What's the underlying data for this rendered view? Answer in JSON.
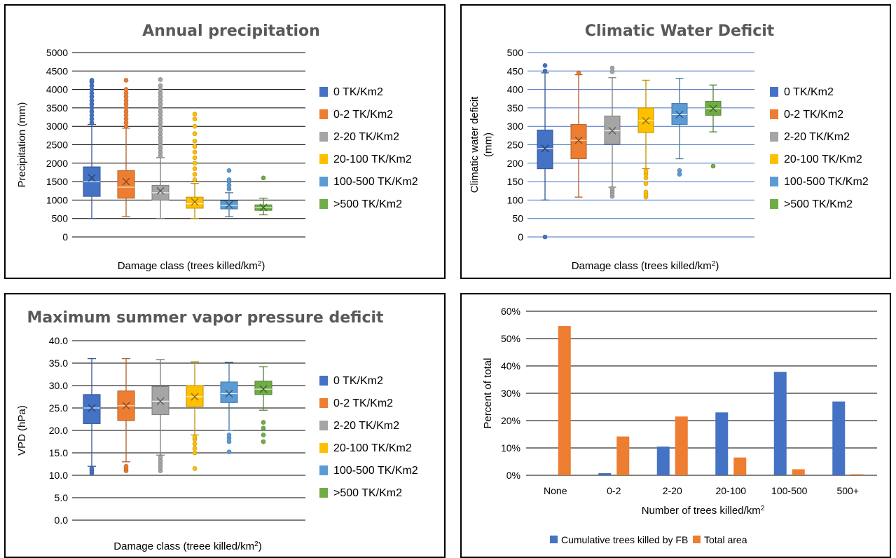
{
  "chart_data": [
    {
      "type": "box",
      "title": "Annual precipitation",
      "xlabel": "Damage class (trees killed/km",
      "xlabel_sup": "2",
      "xlabel_end": ")",
      "ylabel": "Precipitation (mm)",
      "ylim": [
        0,
        5000
      ],
      "yticks": [
        0,
        500,
        1000,
        1500,
        2000,
        2500,
        3000,
        3500,
        4000,
        4500,
        5000
      ],
      "ytick_labels": [
        "0",
        "500",
        "1000",
        "1500",
        "2000",
        "2500",
        "3000",
        "3500",
        "4000",
        "4500",
        "5000"
      ],
      "legend_position": "right",
      "series": [
        {
          "name": "0 TK/Km2",
          "color": "#4472c4",
          "min": 500,
          "q1": 1100,
          "median": 1500,
          "q3": 1900,
          "max": 3050,
          "mean": 1600,
          "outliers": [
            3100,
            3200,
            3300,
            3400,
            3500,
            3600,
            3700,
            3800,
            3900,
            4000,
            4100,
            4200,
            4250
          ]
        },
        {
          "name": "0-2 TK/Km2",
          "color": "#ed7d31",
          "min": 550,
          "q1": 1050,
          "median": 1350,
          "q3": 1800,
          "max": 2950,
          "mean": 1500,
          "outliers": [
            3000,
            3100,
            3200,
            3300,
            3400,
            3500,
            3600,
            3700,
            3800,
            3900,
            4000,
            4250
          ]
        },
        {
          "name": "2-20 TK/Km2",
          "color": "#a5a5a5",
          "min": 500,
          "q1": 1000,
          "median": 1200,
          "q3": 1400,
          "max": 2150,
          "mean": 1250,
          "outliers": [
            2200,
            2300,
            2400,
            2500,
            2600,
            2700,
            2800,
            2900,
            3000,
            3100,
            3200,
            3300,
            3400,
            3500,
            3600,
            3700,
            3800,
            3900,
            4000,
            4100,
            4270
          ]
        },
        {
          "name": "20-100 TK/Km2",
          "color": "#ffc000",
          "min": 500,
          "q1": 780,
          "median": 900,
          "q3": 1080,
          "max": 1450,
          "mean": 950,
          "outliers": [
            1550,
            1700,
            1850,
            2000,
            2150,
            2300,
            2450,
            2600,
            2800,
            3000,
            3200,
            3330
          ]
        },
        {
          "name": "100-500 TK/Km2",
          "color": "#5b9bd5",
          "min": 550,
          "q1": 760,
          "median": 850,
          "q3": 980,
          "max": 1200,
          "mean": 870,
          "outliers": [
            1300,
            1400,
            1500,
            1550,
            1800
          ]
        },
        {
          "name": ">500 TK/Km2",
          "color": "#70ad47",
          "min": 600,
          "q1": 720,
          "median": 790,
          "q3": 870,
          "max": 1050,
          "mean": 800,
          "outliers": [
            1600
          ]
        }
      ]
    },
    {
      "type": "box",
      "title": "Climatic Water Deficit",
      "xlabel": "Damage class (trees killed/km",
      "xlabel_sup": "2",
      "xlabel_end": ")",
      "ylabel": "Climatic water deficit",
      "ylabel2": "(mm)",
      "ylim": [
        0,
        500
      ],
      "yticks": [
        0,
        50,
        100,
        150,
        200,
        250,
        300,
        350,
        400,
        450,
        500
      ],
      "ytick_labels": [
        "0",
        "50",
        "100",
        "150",
        "200",
        "250",
        "300",
        "350",
        "400",
        "450",
        "500"
      ],
      "legend_position": "right",
      "series": [
        {
          "name": "0 TK/Km2",
          "color": "#4472c4",
          "min": 100,
          "q1": 185,
          "median": 240,
          "q3": 290,
          "max": 445,
          "mean": 240,
          "outliers": [
            0,
            450,
            465
          ]
        },
        {
          "name": "0-2 TK/Km2",
          "color": "#ed7d31",
          "min": 108,
          "q1": 212,
          "median": 262,
          "q3": 305,
          "max": 440,
          "mean": 262,
          "outliers": [
            445
          ]
        },
        {
          "name": "2-20 TK/Km2",
          "color": "#a5a5a5",
          "min": 135,
          "q1": 252,
          "median": 288,
          "q3": 328,
          "max": 432,
          "mean": 288,
          "outliers": [
            110,
            118,
            125,
            132,
            448,
            458
          ]
        },
        {
          "name": "20-100 TK/Km2",
          "color": "#ffc000",
          "min": 185,
          "q1": 283,
          "median": 315,
          "q3": 350,
          "max": 425,
          "mean": 315,
          "outliers": [
            108,
            115,
            122,
            145,
            160,
            170,
            178
          ]
        },
        {
          "name": "100-500 TK/Km2",
          "color": "#5b9bd5",
          "min": 212,
          "q1": 305,
          "median": 332,
          "q3": 362,
          "max": 430,
          "mean": 332,
          "outliers": [
            170,
            180
          ]
        },
        {
          "name": ">500 TK/Km2",
          "color": "#70ad47",
          "min": 285,
          "q1": 330,
          "median": 348,
          "q3": 368,
          "max": 412,
          "mean": 348,
          "outliers": [
            192
          ]
        }
      ]
    },
    {
      "type": "box",
      "title": "Maximum summer vapor pressure deficit",
      "xlabel": "Damage class (treee killed/km",
      "xlabel_sup": "2",
      "xlabel_end": ")",
      "ylabel": "VPD (hPa)",
      "ylim": [
        0,
        40
      ],
      "yticks": [
        0,
        5,
        10,
        15,
        20,
        25,
        30,
        35,
        40
      ],
      "ytick_labels": [
        "0.0",
        "5.0",
        "10.0",
        "15.0",
        "20.0",
        "25.0",
        "30.0",
        "35.0",
        "40.0"
      ],
      "legend_position": "right",
      "series": [
        {
          "name": "0 TK/Km2",
          "color": "#4472c4",
          "min": 12.0,
          "q1": 21.5,
          "median": 25.0,
          "q3": 28.0,
          "max": 36.0,
          "mean": 25.0,
          "outliers": [
            10.5,
            11.0,
            11.5
          ]
        },
        {
          "name": "0-2 TK/Km2",
          "color": "#ed7d31",
          "min": 13.0,
          "q1": 22.2,
          "median": 25.5,
          "q3": 28.8,
          "max": 36.0,
          "mean": 25.5,
          "outliers": [
            11.0,
            11.5,
            12.0
          ]
        },
        {
          "name": "2-20 TK/Km2",
          "color": "#a5a5a5",
          "min": 14.5,
          "q1": 23.5,
          "median": 26.5,
          "q3": 29.8,
          "max": 35.8,
          "mean": 26.5,
          "outliers": [
            11.0,
            11.8,
            12.5,
            13.2,
            14.0
          ]
        },
        {
          "name": "20-100 TK/Km2",
          "color": "#ffc000",
          "min": 19.0,
          "q1": 25.3,
          "median": 27.5,
          "q3": 30.0,
          "max": 35.3,
          "mean": 27.5,
          "outliers": [
            11.5,
            15.0,
            16.0,
            17.0,
            18.0,
            18.5
          ]
        },
        {
          "name": "100-500 TK/Km2",
          "color": "#5b9bd5",
          "min": 20.0,
          "q1": 26.2,
          "median": 28.2,
          "q3": 30.8,
          "max": 35.2,
          "mean": 28.2,
          "outliers": [
            15.2,
            17.5,
            18.3,
            19.0
          ]
        },
        {
          "name": ">500 TK/Km2",
          "color": "#70ad47",
          "min": 24.5,
          "q1": 28.0,
          "median": 29.2,
          "q3": 31.0,
          "max": 34.2,
          "mean": 29.2,
          "outliers": [
            17.5,
            19.0,
            20.5,
            21.8
          ]
        }
      ]
    },
    {
      "type": "bar",
      "title": "",
      "xlabel": "Number of trees killed/km",
      "xlabel_sup": "2",
      "ylabel": "Percent of total",
      "ylim": [
        0,
        60
      ],
      "yticks": [
        0,
        10,
        20,
        30,
        40,
        50,
        60
      ],
      "ytick_labels": [
        "0%",
        "10%",
        "20%",
        "30%",
        "40%",
        "50%",
        "60%"
      ],
      "categories": [
        "None",
        "0-2",
        "2-20",
        "20-100",
        "100-500",
        "500+"
      ],
      "legend_position": "bottom",
      "series": [
        {
          "name": "Cumulative trees killed by FB",
          "color": "#4472c4",
          "values": [
            0,
            0.8,
            10.5,
            23.0,
            37.8,
            27.0
          ]
        },
        {
          "name": "Total area",
          "color": "#ed7d31",
          "values": [
            54.6,
            14.2,
            21.5,
            6.5,
            2.2,
            0.4
          ]
        }
      ]
    }
  ]
}
